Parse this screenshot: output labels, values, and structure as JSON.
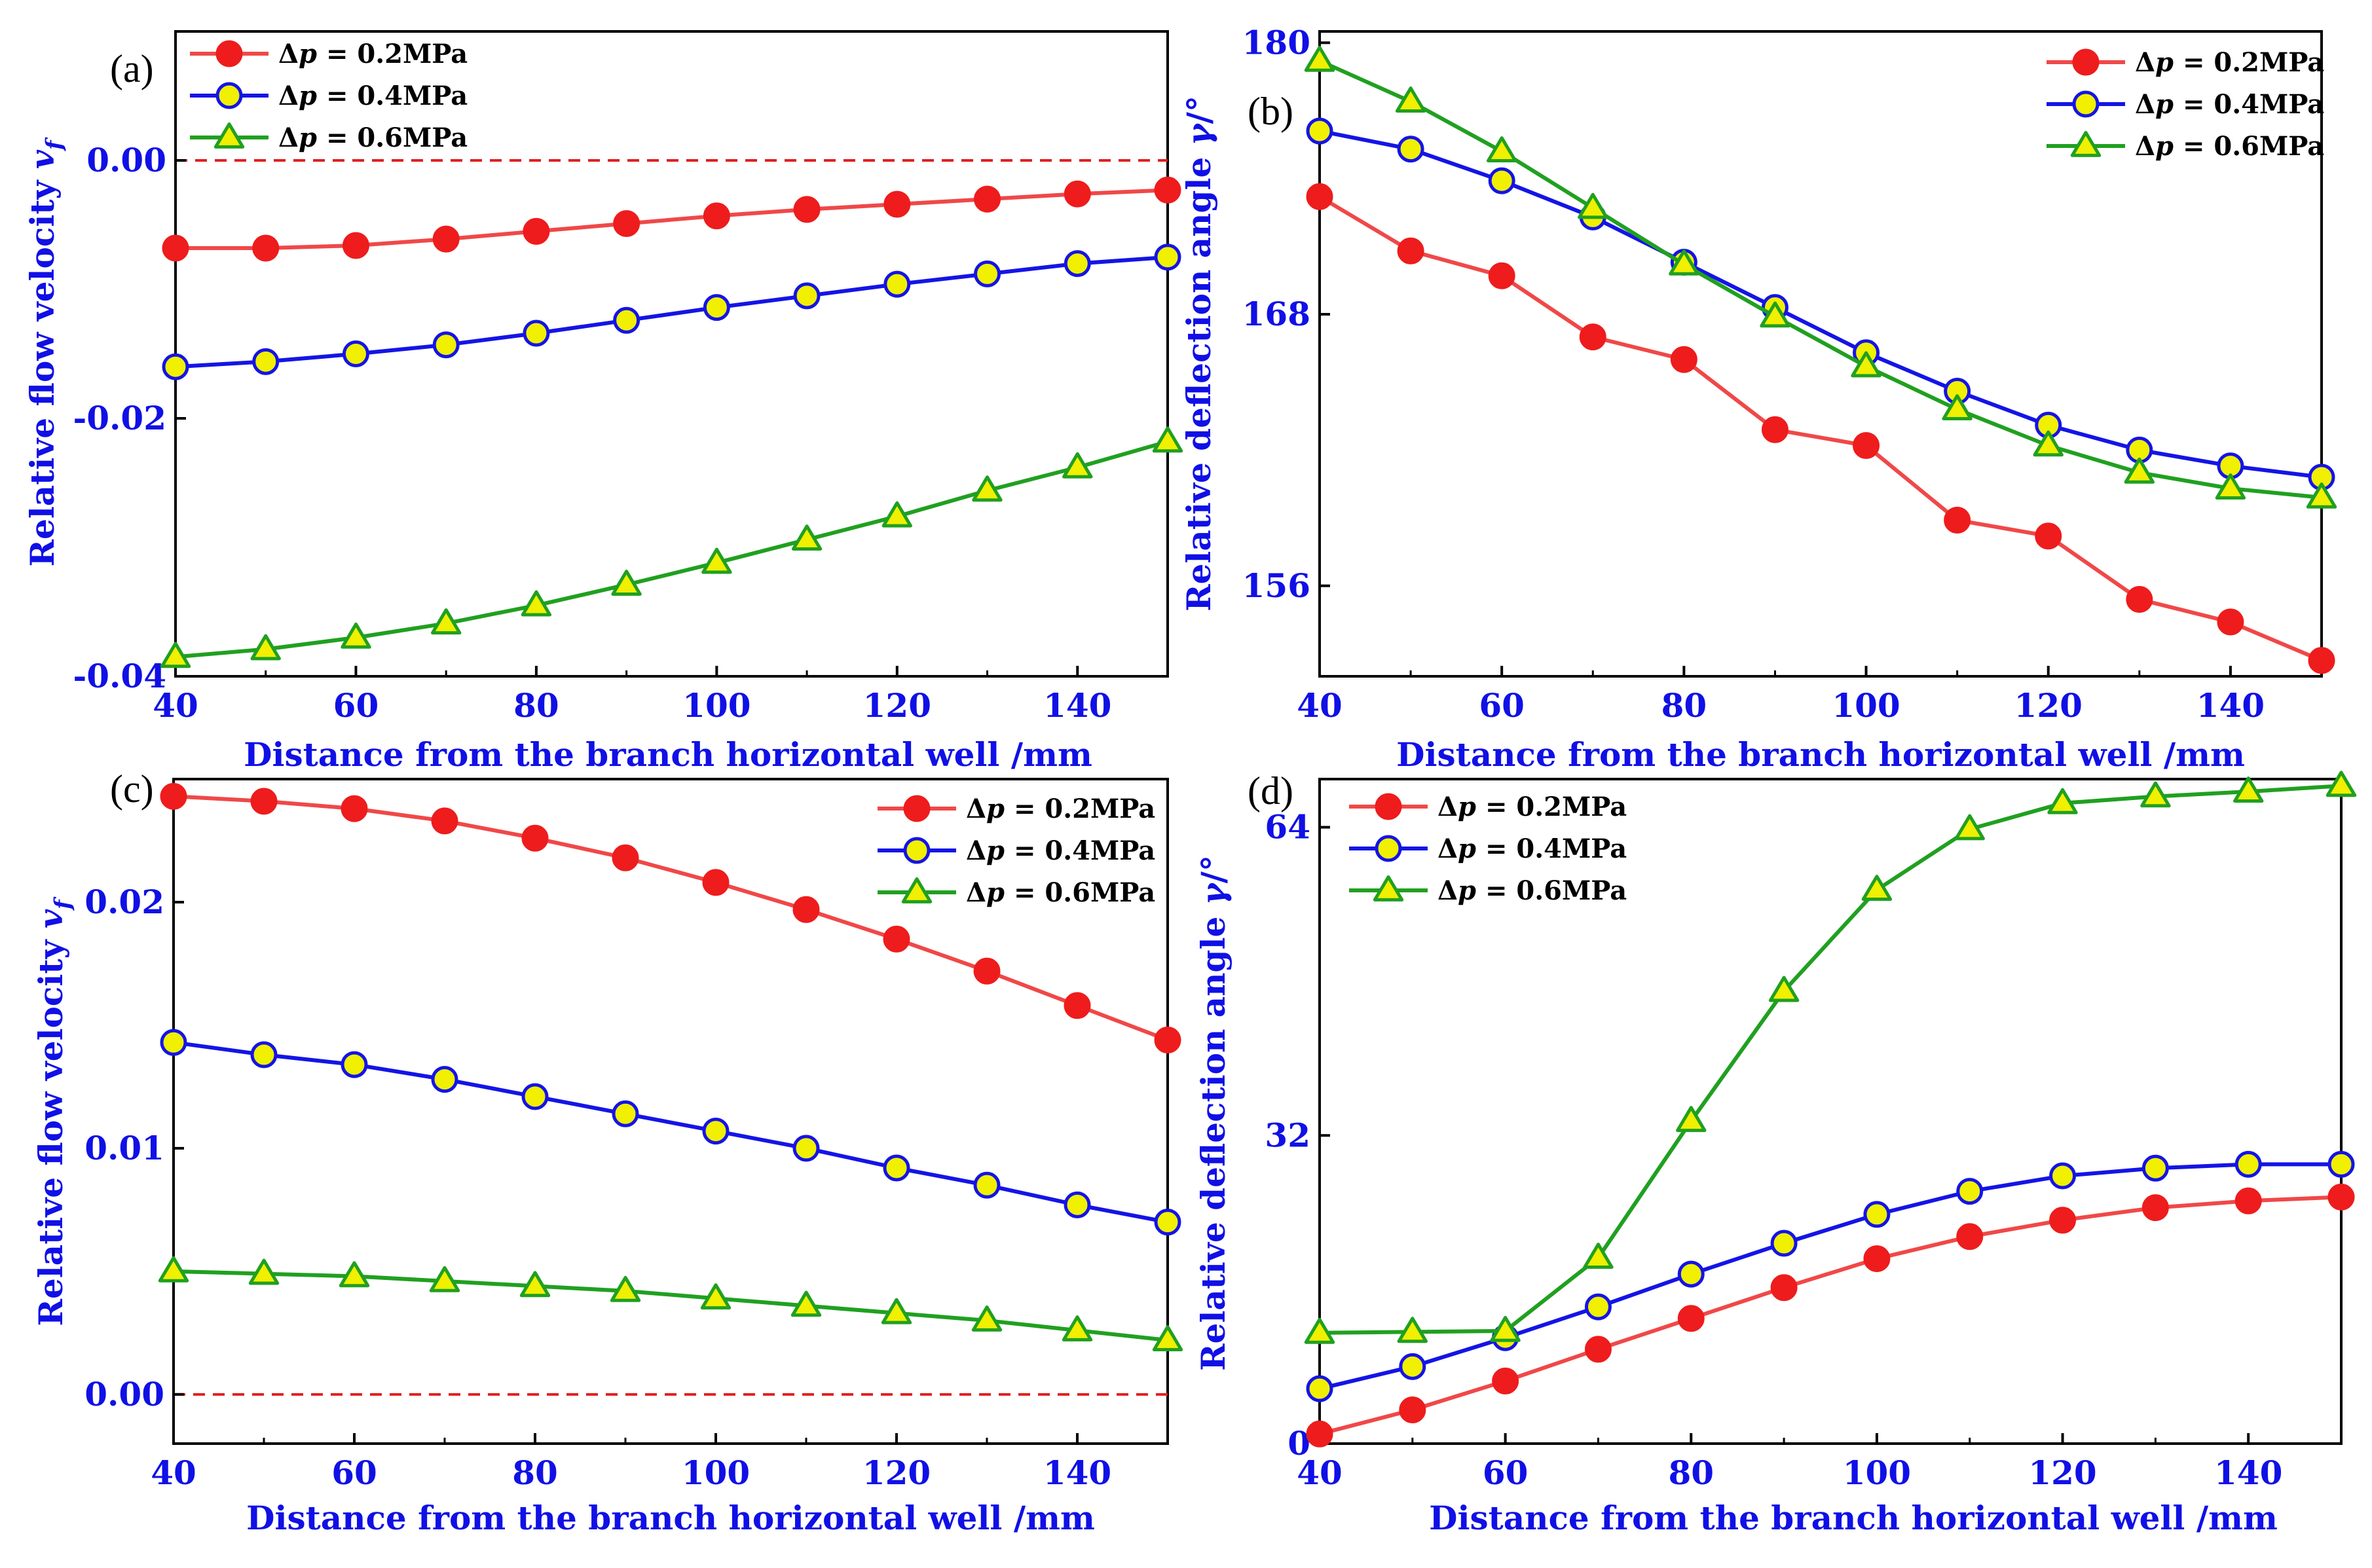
{
  "colors": {
    "axis_text": "#1010e6",
    "s02": "#f04848",
    "s04": "#1414e6",
    "s06": "#20a020",
    "marker_yellow": "#f0f000",
    "marker_red": "#ee1c1c",
    "ref_line": "#e02020"
  },
  "chart_data": [
    {
      "panel": "(a)",
      "type": "line",
      "xlabel": "Distance from the branch horizontal well /mm",
      "ylabel_main": "Relative flow velocity ",
      "ylabel_var": "v",
      "ylabel_sub": "f",
      "xlim": [
        40,
        150
      ],
      "ylim": [
        -0.04,
        0.01
      ],
      "xticks": [
        40,
        60,
        80,
        100,
        120,
        140
      ],
      "xtick_labels": [
        "40",
        "60",
        "80",
        "100",
        "120",
        "140"
      ],
      "yticks": [
        -0.04,
        -0.02,
        0.0
      ],
      "ytick_labels": [
        "-0.04",
        "-0.02",
        "0.00"
      ],
      "ref_line": 0.0,
      "legend_position": "top-left",
      "x": [
        40,
        50,
        60,
        70,
        80,
        90,
        100,
        110,
        120,
        130,
        140,
        150
      ],
      "series": [
        {
          "name": "Δp = 0.2MPa",
          "legend_label": " = 0.2MPa",
          "marker": "circle-red",
          "values": [
            -0.0068,
            -0.0068,
            -0.0066,
            -0.0061,
            -0.0055,
            -0.0049,
            -0.0043,
            -0.0038,
            -0.0034,
            -0.003,
            -0.0026,
            -0.0023
          ]
        },
        {
          "name": "Δp = 0.4MPa",
          "legend_label": " = 0.4MPa",
          "marker": "circle-yellow",
          "values": [
            -0.016,
            -0.0156,
            -0.015,
            -0.0143,
            -0.0134,
            -0.0124,
            -0.0114,
            -0.0105,
            -0.0096,
            -0.0088,
            -0.008,
            -0.0075
          ]
        },
        {
          "name": "Δp = 0.6MPa",
          "legend_label": " = 0.6MPa",
          "marker": "triangle-yellow",
          "values": [
            -0.0385,
            -0.0379,
            -0.037,
            -0.0359,
            -0.0345,
            -0.0329,
            -0.0312,
            -0.0294,
            -0.0276,
            -0.0256,
            -0.0238,
            -0.0218
          ]
        }
      ]
    },
    {
      "panel": "(b)",
      "type": "line",
      "xlabel": "Distance from the branch horizontal well /mm",
      "ylabel_main": "Relative deflection angle ",
      "ylabel_var": "γ",
      "ylabel_sub": "",
      "ylabel_unit": "/°",
      "xlim": [
        40,
        150
      ],
      "ylim": [
        152,
        180.5
      ],
      "xticks": [
        40,
        60,
        80,
        100,
        120,
        140
      ],
      "xtick_labels": [
        "40",
        "60",
        "80",
        "100",
        "120",
        "140"
      ],
      "yticks": [
        156,
        168,
        180
      ],
      "ytick_labels": [
        "156",
        "168",
        "180"
      ],
      "legend_position": "top-right",
      "x": [
        40,
        50,
        60,
        70,
        80,
        90,
        100,
        110,
        120,
        130,
        140,
        150
      ],
      "series": [
        {
          "name": "Δp = 0.2MPa",
          "legend_label": " = 0.2MPa",
          "marker": "circle-red",
          "values": [
            173.2,
            170.8,
            169.7,
            167.0,
            166.0,
            162.9,
            162.2,
            158.9,
            158.2,
            155.4,
            154.4,
            152.7
          ]
        },
        {
          "name": "Δp = 0.4MPa",
          "legend_label": " = 0.4MPa",
          "marker": "circle-yellow",
          "values": [
            176.1,
            175.3,
            173.9,
            172.3,
            170.3,
            168.3,
            166.3,
            164.6,
            163.1,
            162.0,
            161.3,
            160.8
          ]
        },
        {
          "name": "Δp = 0.6MPa",
          "legend_label": " = 0.6MPa",
          "marker": "triangle-yellow",
          "values": [
            179.2,
            177.4,
            175.2,
            172.7,
            170.2,
            167.9,
            165.7,
            163.8,
            162.2,
            161.0,
            160.3,
            159.9
          ]
        }
      ]
    },
    {
      "panel": "(c)",
      "type": "line",
      "xlabel": "Distance from the branch horizontal well /mm",
      "ylabel_main": "Relative flow velocity ",
      "ylabel_var": "v",
      "ylabel_sub": "f",
      "xlim": [
        40,
        150
      ],
      "ylim": [
        -0.002,
        0.025
      ],
      "xticks": [
        40,
        60,
        80,
        100,
        120,
        140
      ],
      "xtick_labels": [
        "40",
        "60",
        "80",
        "100",
        "120",
        "140"
      ],
      "yticks": [
        0.0,
        0.01,
        0.02
      ],
      "ytick_labels": [
        "0.00",
        "0.01",
        "0.02"
      ],
      "ref_line": 0.0,
      "legend_position": "top-right",
      "x": [
        40,
        50,
        60,
        70,
        80,
        90,
        100,
        110,
        120,
        130,
        140,
        150
      ],
      "series": [
        {
          "name": "Δp = 0.2MPa",
          "legend_label": " = 0.2MPa",
          "marker": "circle-red",
          "values": [
            0.0243,
            0.0241,
            0.0238,
            0.0233,
            0.0226,
            0.0218,
            0.0208,
            0.0197,
            0.0185,
            0.0172,
            0.0158,
            0.0144
          ]
        },
        {
          "name": "Δp = 0.4MPa",
          "legend_label": " = 0.4MPa",
          "marker": "circle-yellow",
          "values": [
            0.0143,
            0.0138,
            0.0134,
            0.0128,
            0.0121,
            0.0114,
            0.0107,
            0.01,
            0.0092,
            0.0085,
            0.0077,
            0.007
          ]
        },
        {
          "name": "Δp = 0.6MPa",
          "legend_label": " = 0.6MPa",
          "marker": "triangle-yellow",
          "values": [
            0.005,
            0.0049,
            0.0048,
            0.0046,
            0.0044,
            0.0042,
            0.0039,
            0.0036,
            0.0033,
            0.003,
            0.0026,
            0.0022
          ]
        }
      ]
    },
    {
      "panel": "(d)",
      "type": "line",
      "xlabel": "Distance from the branch horizontal well /mm",
      "ylabel_main": "Relative deflection angle ",
      "ylabel_var": "γ",
      "ylabel_sub": "",
      "ylabel_unit": "/°",
      "xlim": [
        40,
        150
      ],
      "ylim": [
        0,
        69
      ],
      "xticks": [
        40,
        60,
        80,
        100,
        120,
        140
      ],
      "xtick_labels": [
        "40",
        "60",
        "80",
        "100",
        "120",
        "140"
      ],
      "yticks": [
        0,
        32,
        64
      ],
      "ytick_labels": [
        "0",
        "32",
        "64"
      ],
      "legend_position": "top-left",
      "x": [
        40,
        50,
        60,
        70,
        80,
        90,
        100,
        110,
        120,
        130,
        140,
        150
      ],
      "series": [
        {
          "name": "Δp = 0.2MPa",
          "legend_label": " = 0.2MPa",
          "marker": "circle-red",
          "values": [
            1.0,
            3.5,
            6.5,
            9.8,
            13.0,
            16.2,
            19.2,
            21.5,
            23.2,
            24.5,
            25.2,
            25.6
          ]
        },
        {
          "name": "Δp = 0.4MPa",
          "legend_label": " = 0.4MPa",
          "marker": "circle-yellow",
          "values": [
            5.7,
            8.0,
            11.0,
            14.2,
            17.6,
            20.8,
            23.8,
            26.2,
            27.8,
            28.6,
            29.0,
            29.0
          ]
        },
        {
          "name": "Δp = 0.6MPa",
          "legend_label": " = 0.6MPa",
          "marker": "triangle-yellow",
          "values": [
            11.5,
            11.6,
            11.7,
            19.3,
            33.5,
            47.0,
            57.5,
            63.8,
            66.5,
            67.2,
            67.7,
            68.3
          ]
        }
      ]
    }
  ]
}
